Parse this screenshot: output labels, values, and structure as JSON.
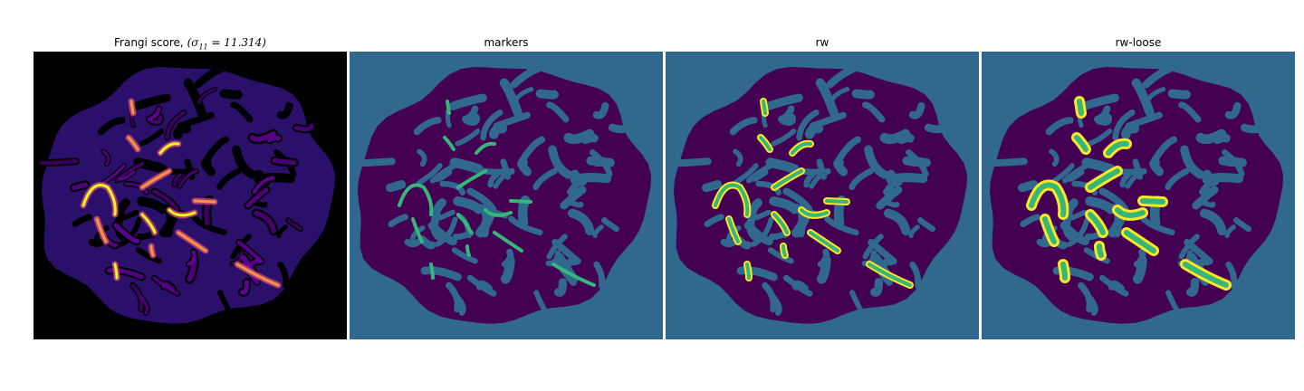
{
  "panels": [
    {
      "id": "frangi",
      "title_prefix": "Frangi score, ",
      "title_math": "(σ",
      "title_math_sub": "11",
      "title_math_rest": " = 11.314)",
      "colormap": "plasma",
      "colors": {
        "background": "#000000",
        "body": "#2a0f6b",
        "ridge_low": "#6a00a8",
        "ridge_mid": "#cc4778",
        "ridge_high": "#f89540",
        "ridge_peak": "#f0f921"
      }
    },
    {
      "id": "markers",
      "title": "markers",
      "colormap": "viridis",
      "colors": {
        "background": "#31688e",
        "body": "#440154",
        "marker": "#35b779"
      }
    },
    {
      "id": "rw",
      "title": "rw",
      "colormap": "viridis",
      "colors": {
        "background": "#31688e",
        "body": "#440154",
        "vessel_core": "#35b779",
        "vessel_edge": "#fde725"
      }
    },
    {
      "id": "rw-loose",
      "title": "rw-loose",
      "colormap": "viridis",
      "colors": {
        "background": "#31688e",
        "body": "#440154",
        "vessel_core": "#35b779",
        "vessel_edge": "#fde725"
      }
    }
  ]
}
